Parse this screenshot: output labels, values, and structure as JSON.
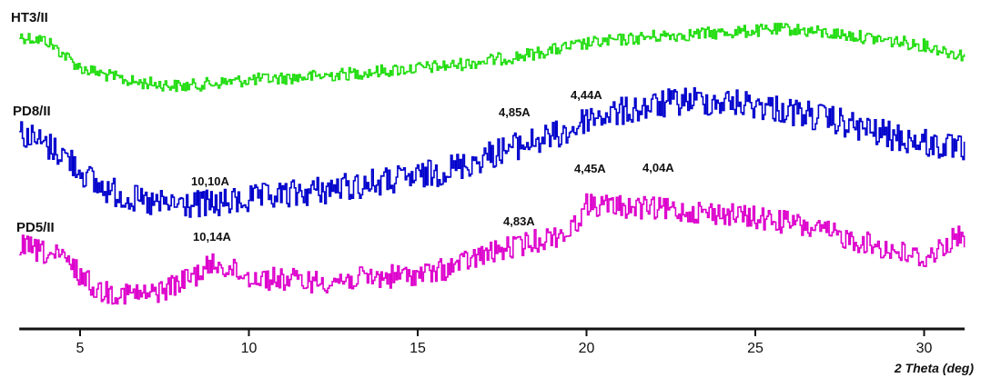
{
  "chart_data": {
    "type": "line",
    "xlabel": "2 Theta (deg)",
    "xlim": [
      3.2,
      31.2
    ],
    "x_ticks": [
      5,
      10,
      15,
      20,
      25,
      30
    ],
    "y_axis": "none",
    "grid": false,
    "legend": "none",
    "series": [
      {
        "name": "HT3/II",
        "color": "#22dd11",
        "profile": [
          [
            3.2,
            40
          ],
          [
            4.0,
            45
          ],
          [
            5.0,
            75
          ],
          [
            6.5,
            90
          ],
          [
            8.0,
            95
          ],
          [
            10.0,
            88
          ],
          [
            12.0,
            84
          ],
          [
            14.0,
            78
          ],
          [
            16.0,
            72
          ],
          [
            18.0,
            62
          ],
          [
            20.0,
            48
          ],
          [
            22.0,
            40
          ],
          [
            24.0,
            36
          ],
          [
            26.0,
            32
          ],
          [
            28.0,
            40
          ],
          [
            30.0,
            50
          ],
          [
            31.0,
            60
          ]
        ]
      },
      {
        "name": "PD8/II",
        "color": "#0000cc",
        "profile": [
          [
            3.2,
            145
          ],
          [
            4.5,
            170
          ],
          [
            5.5,
            205
          ],
          [
            7.0,
            225
          ],
          [
            9.0,
            225
          ],
          [
            11.0,
            215
          ],
          [
            13.0,
            205
          ],
          [
            15.0,
            195
          ],
          [
            16.5,
            180
          ],
          [
            17.5,
            165
          ],
          [
            19.5,
            145
          ],
          [
            20.0,
            130
          ],
          [
            21.5,
            120
          ],
          [
            23.0,
            110
          ],
          [
            25.0,
            115
          ],
          [
            27.0,
            130
          ],
          [
            29.0,
            150
          ],
          [
            31.0,
            165
          ]
        ],
        "annotations": [
          {
            "text": "10,10A",
            "x": 9.0
          },
          {
            "text": "4,85A",
            "x": 18.0
          },
          {
            "text": "4,44A",
            "x": 19.7
          }
        ]
      },
      {
        "name": "PD5/II",
        "color": "#dd00cc",
        "profile": [
          [
            3.2,
            270
          ],
          [
            4.5,
            285
          ],
          [
            5.5,
            320
          ],
          [
            7.0,
            325
          ],
          [
            8.0,
            310
          ],
          [
            9.0,
            290
          ],
          [
            10.0,
            305
          ],
          [
            12.0,
            310
          ],
          [
            14.0,
            305
          ],
          [
            15.5,
            300
          ],
          [
            17.0,
            280
          ],
          [
            18.0,
            270
          ],
          [
            19.5,
            255
          ],
          [
            20.0,
            225
          ],
          [
            22.0,
            230
          ],
          [
            24.0,
            235
          ],
          [
            26.0,
            245
          ],
          [
            28.0,
            265
          ],
          [
            30.0,
            285
          ],
          [
            31.0,
            260
          ]
        ],
        "annotations": [
          {
            "text": "10,14A",
            "x": 9.0
          },
          {
            "text": "4,83A",
            "x": 17.8
          },
          {
            "text": "4,45A",
            "x": 20.0
          },
          {
            "text": "4,04A",
            "x": 22.0
          }
        ]
      }
    ]
  }
}
